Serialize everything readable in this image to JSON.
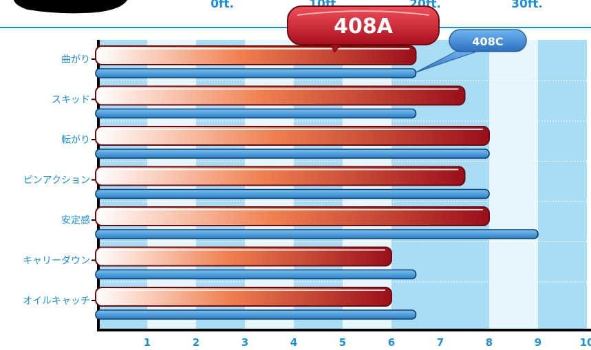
{
  "chart_data": {
    "type": "bar",
    "orientation": "horizontal",
    "categories": [
      "曲がり",
      "スキッド",
      "転がり",
      "ピンアクション",
      "安定感",
      "キャリーダウン",
      "オイルキャッチ"
    ],
    "series": [
      {
        "name": "408A",
        "values": [
          6.5,
          7.5,
          8.0,
          7.5,
          8.0,
          6.0,
          6.0
        ]
      },
      {
        "name": "408C",
        "values": [
          6.5,
          6.5,
          8.0,
          8.0,
          9.0,
          6.5,
          6.5
        ]
      }
    ],
    "x_ticks": [
      "1",
      "2",
      "3",
      "4",
      "5",
      "6",
      "7",
      "8",
      "9",
      "10"
    ],
    "xlim": [
      0,
      10
    ],
    "top_labels": [
      "0ft.",
      "10ft.",
      "20ft.",
      "30ft."
    ],
    "grid": true
  },
  "colors": {
    "accent": "#1f8fd8",
    "series_a_dark": "#a0101c",
    "series_b": "#3e96dc",
    "band_dark": "#a9dcf5",
    "band_light": "#e7f5fc"
  }
}
